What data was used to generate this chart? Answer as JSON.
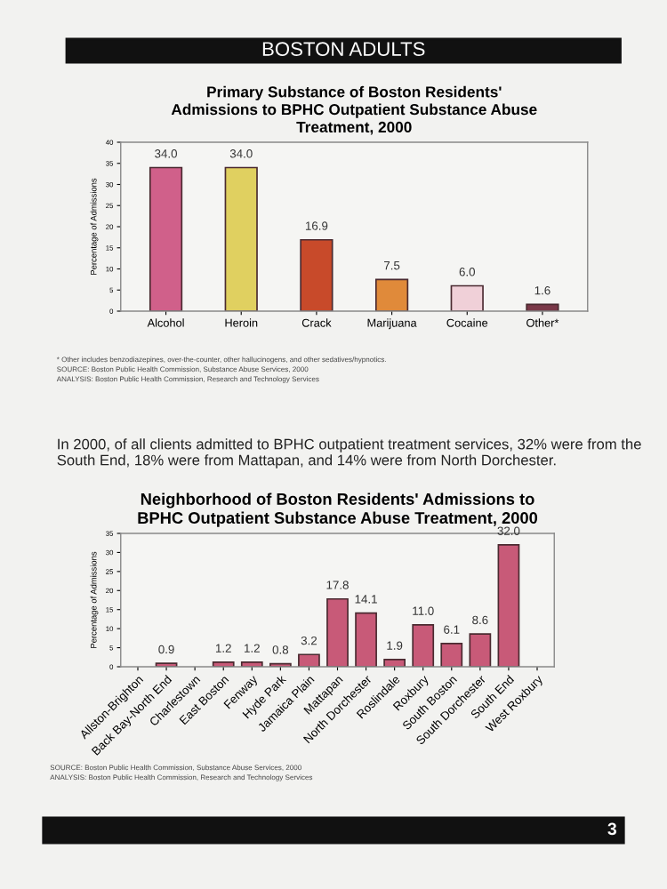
{
  "chart_data": [
    {
      "type": "bar",
      "title": "Primary Substance of Boston Residents'\nAdmissions to BPHC Outpatient Substance Abuse\nTreatment, 2000",
      "ylabel": "Percentage of Admissions",
      "categories": [
        "Alcohol",
        "Heroin",
        "Crack",
        "Marijuana",
        "Cocaine",
        "Other*"
      ],
      "values": [
        34.0,
        34.0,
        16.9,
        7.5,
        6.0,
        1.6
      ],
      "colors": [
        "#d0608a",
        "#e0d060",
        "#c84a2a",
        "#e08a3a",
        "#f0d0d8",
        "#7a3848"
      ],
      "value_labels": [
        "34.0",
        "34.0",
        "16.9",
        "7.5",
        "6.0",
        "1.6"
      ],
      "ylim": [
        0,
        40
      ],
      "yticks": [
        0,
        5,
        10,
        15,
        20,
        25,
        30,
        35,
        40
      ],
      "grid": false,
      "annotations": [
        "BOSTON ADULTS",
        "* Other includes benzodiazepines, over-the-counter, other hallucinogens, and other sedatives/hypnotics.",
        "SOURCE: Boston Public Health Commission, Substance Abuse Services, 2000",
        "ANALYSIS: Boston Public Health Commission, Research and Technology Services",
        "In 2000, of all clients admitted to BPHC outpatient treatment services, 32% were from the South End, 18% were from Mattapan, and 14% were from North Dorchester."
      ]
    },
    {
      "type": "bar",
      "title": "Neighborhood of Boston Residents' Admissions to\nBPHC Outpatient Substance Abuse Treatment, 2000",
      "ylabel": "Percentage of Admissions",
      "categories": [
        "Allston-Brighton",
        "Back Bay-North End",
        "Charlestown",
        "East Boston",
        "Fenway",
        "Hyde Park",
        "Jamaica Plain",
        "Mattapan",
        "North Dorchester",
        "Roslindale",
        "Roxbury",
        "South Boston",
        "South Dorchester",
        "South End",
        "West Roxbury"
      ],
      "values": [
        null,
        0.9,
        null,
        1.2,
        1.2,
        0.8,
        3.2,
        17.8,
        14.1,
        1.9,
        11.0,
        6.1,
        8.6,
        32.0,
        null
      ],
      "color": "#c85a78",
      "value_labels": [
        null,
        "0.9",
        null,
        "1.2",
        "1.2",
        "0.8",
        "3.2",
        "17.8",
        "14.1",
        "1.9",
        "11.0",
        "6.1",
        "8.6",
        "32.0",
        null
      ],
      "ylim": [
        0,
        35
      ],
      "yticks": [
        0,
        5,
        10,
        15,
        20,
        25,
        30,
        35
      ],
      "grid": false,
      "annotations": [
        "SOURCE: Boston Public Health Commission, Substance Abuse Services, 2000",
        "ANALYSIS: Boston Public Health Commission, Research and Technology Services",
        "3"
      ]
    }
  ]
}
